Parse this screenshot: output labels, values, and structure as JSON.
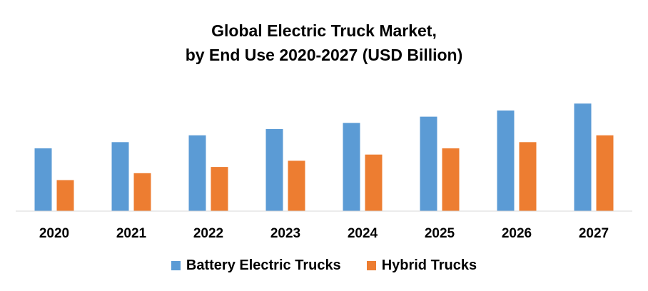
{
  "chart_data": {
    "type": "bar",
    "title_line1": "Global Electric Truck Market,",
    "title_line2": "by End Use 2020-2027 (USD Billion)",
    "categories": [
      "2020",
      "2021",
      "2022",
      "2023",
      "2024",
      "2025",
      "2026",
      "2027"
    ],
    "series": [
      {
        "name": "Battery Electric Trucks",
        "color": "#5b9bd5",
        "values": [
          91,
          100,
          110,
          119,
          128,
          137,
          146,
          156
        ]
      },
      {
        "name": "Hybrid Trucks",
        "color": "#ed7d31",
        "values": [
          45,
          55,
          64,
          73,
          82,
          91,
          100,
          110
        ]
      }
    ],
    "ylim": [
      0,
      180
    ],
    "grid": false,
    "legend_position": "bottom"
  }
}
